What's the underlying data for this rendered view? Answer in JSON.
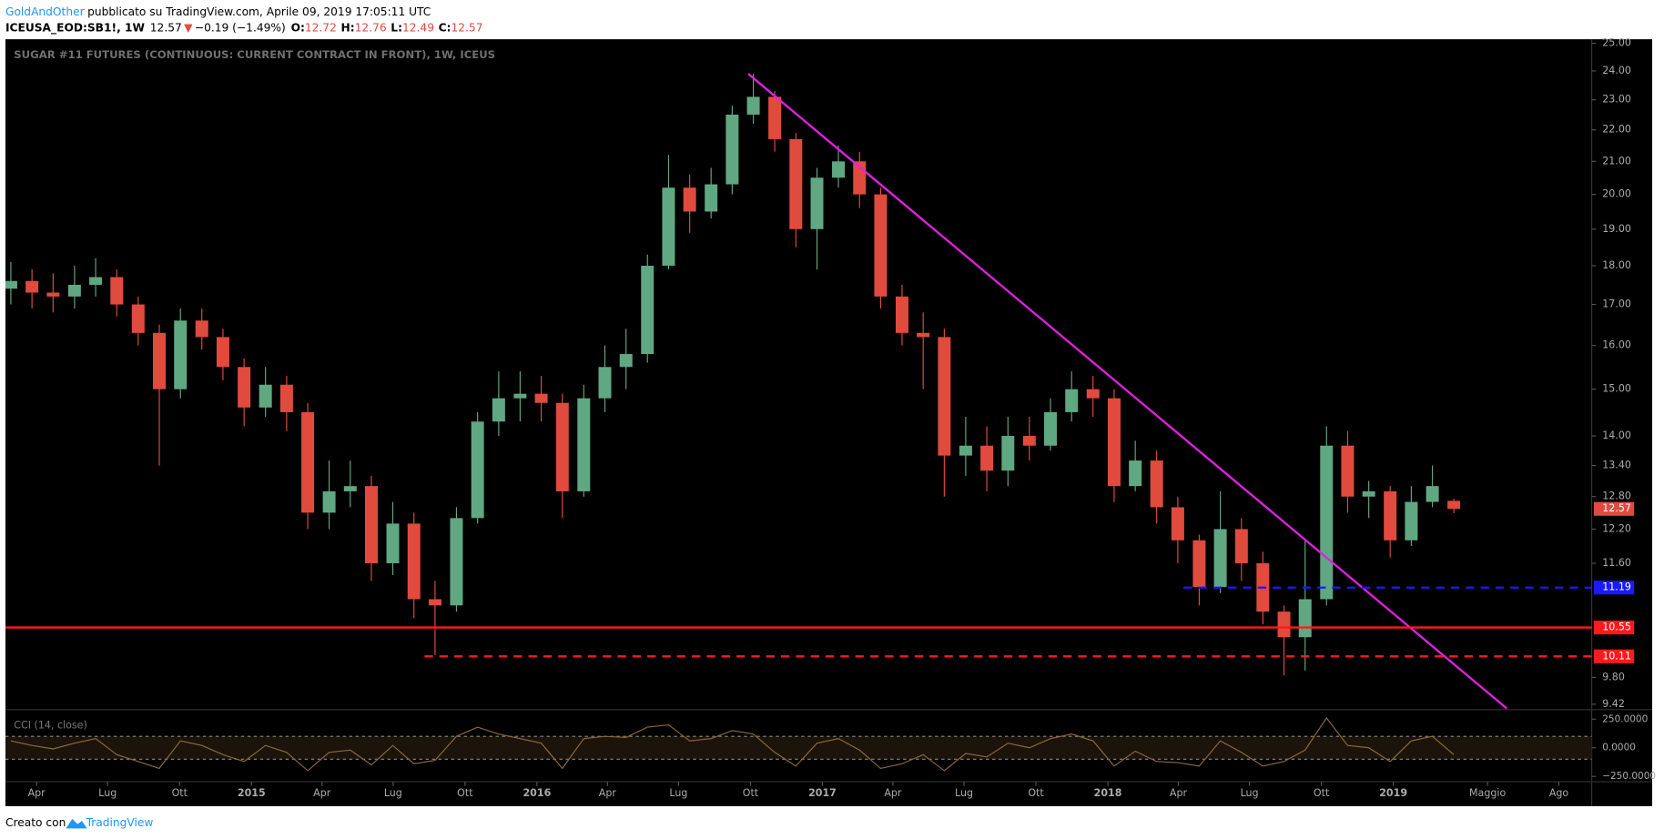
{
  "header": {
    "author": "GoldAndOther",
    "published": "pubblicato su TradingView.com, Aprile 09, 2019 17:05:11 UTC",
    "symbol": "ICEUSA_EOD:SB1!, 1W",
    "last": 12.57,
    "change": "−0.19 (−1.49%)",
    "ohlc": [
      {
        "label": "O:",
        "value": 12.72
      },
      {
        "label": "H:",
        "value": 12.76
      },
      {
        "label": "L:",
        "value": 12.49
      },
      {
        "label": "C:",
        "value": 12.57
      }
    ]
  },
  "chart_data": [
    {
      "type": "candlestick",
      "title": "SUGAR #11 FUTURES (CONTINUOUS: CURRENT CONTRACT IN FRONT), 1W, ICEUS",
      "x": [
        2014.157,
        2014.231,
        2014.305,
        2014.38,
        2014.454,
        2014.528,
        2014.603,
        2014.677,
        2014.751,
        2014.826,
        2014.9,
        2014.974,
        2015.049,
        2015.123,
        2015.197,
        2015.272,
        2015.346,
        2015.42,
        2015.495,
        2015.569,
        2015.643,
        2015.718,
        2015.792,
        2015.866,
        2015.941,
        2016.015,
        2016.089,
        2016.164,
        2016.238,
        2016.312,
        2016.387,
        2016.461,
        2016.535,
        2016.61,
        2016.684,
        2016.758,
        2016.833,
        2016.907,
        2016.981,
        2017.056,
        2017.13,
        2017.204,
        2017.279,
        2017.353,
        2017.427,
        2017.502,
        2017.576,
        2017.65,
        2017.725,
        2017.799,
        2017.873,
        2017.948,
        2018.022,
        2018.096,
        2018.171,
        2018.245,
        2018.32,
        2018.394,
        2018.468,
        2018.543,
        2018.617,
        2018.691,
        2018.766,
        2018.84,
        2018.914,
        2018.989,
        2019.063,
        2019.137,
        2019.212
      ],
      "open": [
        17.4,
        17.6,
        17.3,
        17.2,
        17.5,
        17.7,
        17.0,
        16.3,
        15.0,
        16.6,
        16.2,
        15.5,
        14.6,
        15.1,
        14.5,
        12.5,
        12.9,
        13.0,
        11.6,
        12.3,
        11.0,
        10.9,
        12.4,
        14.3,
        14.8,
        14.9,
        14.7,
        12.9,
        14.8,
        15.5,
        15.8,
        18.0,
        20.2,
        19.5,
        20.3,
        22.5,
        23.1,
        21.7,
        19.0,
        20.5,
        21.0,
        20.0,
        17.2,
        16.3,
        16.2,
        13.6,
        13.8,
        13.3,
        14.0,
        13.8,
        14.5,
        15.0,
        14.8,
        13.0,
        13.5,
        12.6,
        12.0,
        11.2,
        12.2,
        11.6,
        10.8,
        10.4,
        11.0,
        13.8,
        12.8,
        12.9,
        12.0,
        12.7,
        12.72
      ],
      "high": [
        18.1,
        17.9,
        17.8,
        18.0,
        18.2,
        17.9,
        17.2,
        16.5,
        16.9,
        16.9,
        16.4,
        15.7,
        15.5,
        15.3,
        14.7,
        13.5,
        13.5,
        13.2,
        12.7,
        12.5,
        11.3,
        12.6,
        14.5,
        15.4,
        15.4,
        15.3,
        14.9,
        15.1,
        16.0,
        16.4,
        18.3,
        21.2,
        20.6,
        20.8,
        22.8,
        23.9,
        23.3,
        21.9,
        20.8,
        21.5,
        21.3,
        20.2,
        17.5,
        16.8,
        16.4,
        14.4,
        14.2,
        14.4,
        14.4,
        14.8,
        15.4,
        15.3,
        15.0,
        13.9,
        13.7,
        12.8,
        12.1,
        12.9,
        12.4,
        11.8,
        10.9,
        12.0,
        14.2,
        14.1,
        13.1,
        13.0,
        13.0,
        13.4,
        12.76
      ],
      "low": [
        17.0,
        16.9,
        16.8,
        16.9,
        17.2,
        16.7,
        16.0,
        13.4,
        14.8,
        15.9,
        15.2,
        14.2,
        14.4,
        14.1,
        12.2,
        12.2,
        12.6,
        11.3,
        11.4,
        10.7,
        10.13,
        10.8,
        12.3,
        14.0,
        14.3,
        14.3,
        12.4,
        12.8,
        14.5,
        15.0,
        15.6,
        17.9,
        18.9,
        19.3,
        20.0,
        22.2,
        21.3,
        18.5,
        17.9,
        20.2,
        19.6,
        16.9,
        16.0,
        15.0,
        12.8,
        13.2,
        12.9,
        13.0,
        13.5,
        13.7,
        14.3,
        14.4,
        12.7,
        12.9,
        12.3,
        11.6,
        10.9,
        11.1,
        11.3,
        10.6,
        9.83,
        9.9,
        10.9,
        12.5,
        12.4,
        11.7,
        11.9,
        12.6,
        12.49
      ],
      "close": [
        17.6,
        17.3,
        17.2,
        17.5,
        17.7,
        17.0,
        16.3,
        15.0,
        16.6,
        16.2,
        15.5,
        14.6,
        15.1,
        14.5,
        12.5,
        12.9,
        13.0,
        11.6,
        12.3,
        11.0,
        10.9,
        12.4,
        14.3,
        14.8,
        14.9,
        14.7,
        12.9,
        14.8,
        15.5,
        15.8,
        18.0,
        20.2,
        19.5,
        20.3,
        22.5,
        23.1,
        21.7,
        19.0,
        20.5,
        21.0,
        20.0,
        17.2,
        16.3,
        16.2,
        13.6,
        13.8,
        13.3,
        14.0,
        13.8,
        14.5,
        15.0,
        14.8,
        13.0,
        13.5,
        12.6,
        12.0,
        11.2,
        12.2,
        11.6,
        10.8,
        10.4,
        11.0,
        13.8,
        12.8,
        12.9,
        12.0,
        12.7,
        13.0,
        12.57
      ],
      "up_color": "#5fa882",
      "down_color": "#e04b3e",
      "xlim": [
        2014.138,
        2019.695
      ],
      "xticks": [
        {
          "value": 2014.247,
          "label": "Apr"
        },
        {
          "value": 2014.496,
          "label": "Lug"
        },
        {
          "value": 2014.748,
          "label": "Ott"
        },
        2015,
        {
          "value": 2015.247,
          "label": "Apr"
        },
        {
          "value": 2015.496,
          "label": "Lug"
        },
        {
          "value": 2015.748,
          "label": "Ott"
        },
        2016,
        {
          "value": 2016.247,
          "label": "Apr"
        },
        {
          "value": 2016.496,
          "label": "Lug"
        },
        {
          "value": 2016.748,
          "label": "Ott"
        },
        2017,
        {
          "value": 2017.247,
          "label": "Apr"
        },
        {
          "value": 2017.496,
          "label": "Lug"
        },
        {
          "value": 2017.748,
          "label": "Ott"
        },
        2018,
        {
          "value": 2018.247,
          "label": "Apr"
        },
        {
          "value": 2018.496,
          "label": "Lug"
        },
        {
          "value": 2018.748,
          "label": "Ott"
        },
        2019,
        {
          "value": 2019.33,
          "label": "Maggio"
        },
        {
          "value": 2019.58,
          "label": "Ago"
        }
      ],
      "ylim": [
        9.36,
        25.15
      ],
      "log_scale": true,
      "yticks": [
        {
          "value": 25,
          "label": "25.00"
        },
        {
          "value": 24,
          "label": "24.00"
        },
        {
          "value": 23,
          "label": "23.00"
        },
        {
          "value": 22,
          "label": "22.00"
        },
        {
          "value": 21,
          "label": "21.00"
        },
        {
          "value": 20,
          "label": "20.00"
        },
        {
          "value": 19,
          "label": "19.00"
        },
        {
          "value": 18,
          "label": "18.00"
        },
        {
          "value": 17,
          "label": "17.00"
        },
        {
          "value": 16,
          "label": "16.00"
        },
        {
          "value": 15,
          "label": "15.00"
        },
        {
          "value": 14,
          "label": "14.00"
        },
        {
          "value": 13.4,
          "label": "13.40"
        },
        {
          "value": 12.8,
          "label": "12.80"
        },
        {
          "value": 12.2,
          "label": "12.20"
        },
        {
          "value": 11.6,
          "label": "11.60"
        },
        {
          "value": 9.8,
          "label": "9.80"
        },
        {
          "value": 9.42,
          "label": "9.42"
        }
      ],
      "trendline": {
        "color": "#e020e0",
        "x": [
          2016.74,
          2019.398
        ],
        "y": [
          23.9,
          9.36
        ]
      },
      "levels": [
        {
          "value": 11.19,
          "color": "#1a1aff",
          "dashed": true,
          "from": 2018.265
        },
        {
          "value": 10.55,
          "color": "#ff1a1a",
          "dashed": false
        },
        {
          "value": 10.11,
          "color": "#ff1a1a",
          "dashed": true,
          "from": 2015.606
        }
      ]
    },
    {
      "type": "line",
      "title": "CCI (14, close)",
      "color": "#8a6a3c",
      "x": [
        2014.157,
        2014.231,
        2014.305,
        2014.38,
        2014.454,
        2014.528,
        2014.603,
        2014.677,
        2014.751,
        2014.826,
        2014.9,
        2014.974,
        2015.049,
        2015.123,
        2015.197,
        2015.272,
        2015.346,
        2015.42,
        2015.495,
        2015.569,
        2015.643,
        2015.718,
        2015.792,
        2015.866,
        2015.941,
        2016.015,
        2016.089,
        2016.164,
        2016.238,
        2016.312,
        2016.387,
        2016.461,
        2016.535,
        2016.61,
        2016.684,
        2016.758,
        2016.833,
        2016.907,
        2016.981,
        2017.056,
        2017.13,
        2017.204,
        2017.279,
        2017.353,
        2017.427,
        2017.502,
        2017.576,
        2017.65,
        2017.725,
        2017.799,
        2017.873,
        2017.948,
        2018.022,
        2018.096,
        2018.171,
        2018.245,
        2018.32,
        2018.394,
        2018.468,
        2018.543,
        2018.617,
        2018.691,
        2018.766,
        2018.84,
        2018.914,
        2018.989,
        2019.063,
        2019.137,
        2019.212
      ],
      "values": [
        60,
        20,
        -10,
        40,
        80,
        -60,
        -120,
        -180,
        60,
        20,
        -60,
        -120,
        20,
        -40,
        -200,
        -40,
        -20,
        -150,
        20,
        -140,
        -110,
        100,
        180,
        120,
        80,
        40,
        -180,
        80,
        100,
        90,
        180,
        200,
        60,
        80,
        150,
        120,
        -40,
        -160,
        40,
        80,
        -20,
        -180,
        -140,
        -60,
        -200,
        -50,
        -80,
        40,
        0,
        80,
        120,
        60,
        -160,
        -30,
        -120,
        -130,
        -160,
        60,
        -40,
        -160,
        -120,
        -20,
        260,
        20,
        0,
        -120,
        60,
        100,
        -60
      ],
      "ylim": [
        -278,
        324
      ],
      "yticks": [
        {
          "value": 250,
          "label": "250.0000"
        },
        {
          "value": 0,
          "label": "0.0000"
        },
        {
          "value": -250,
          "label": "−250.0000"
        }
      ],
      "band": [
        -100,
        100
      ],
      "band_color": "#1c140a"
    }
  ],
  "footer": {
    "text": "Creato con",
    "brand": "TradingView"
  }
}
